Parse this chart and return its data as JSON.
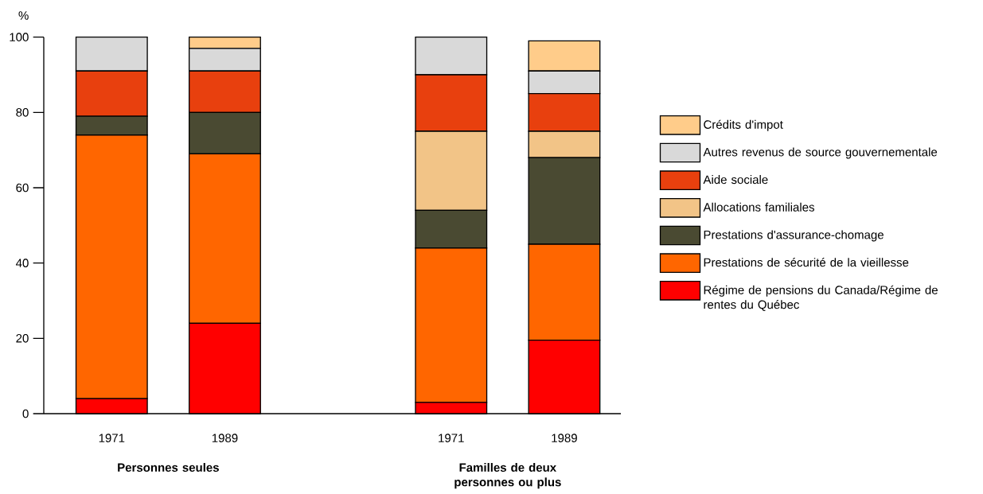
{
  "chart_data": {
    "type": "bar",
    "stacked": true,
    "ylabel": "%",
    "categories": [
      "1971",
      "1989",
      null,
      "1971",
      "1989"
    ],
    "series": [
      {
        "name": "Régime de pensions du Canada/Régime de rentes du Québec",
        "color": "#ff0000",
        "values": [
          4,
          24,
          null,
          3,
          19.5
        ]
      },
      {
        "name": "Prestations de sécurité de la vieillesse",
        "color": "#ff6600",
        "values": [
          70,
          45,
          null,
          41,
          25.5
        ]
      },
      {
        "name": "Prestations d'assurance-chomage",
        "color": "#4a4a32",
        "values": [
          5,
          11,
          null,
          10,
          23
        ]
      },
      {
        "name": "Allocations familiales",
        "color": "#f2c487",
        "values": [
          0,
          0,
          null,
          21,
          7
        ]
      },
      {
        "name": "Aide sociale",
        "color": "#e8400e",
        "values": [
          12,
          11,
          null,
          15,
          10
        ]
      },
      {
        "name": "Autres revenus de source gouvernementale",
        "color": "#d9d9d9",
        "values": [
          9,
          6,
          null,
          10,
          6
        ]
      },
      {
        "name": "Crédits d'impot",
        "color": "#ffcc8a",
        "values": [
          0,
          3,
          null,
          0,
          8
        ]
      }
    ],
    "ylim": [
      0,
      100
    ],
    "yticks": [
      0,
      20,
      40,
      60,
      80,
      100
    ],
    "legend": "right",
    "annotations": [
      "Personnes seules",
      "Familles de deux personnes ou plus"
    ]
  }
}
